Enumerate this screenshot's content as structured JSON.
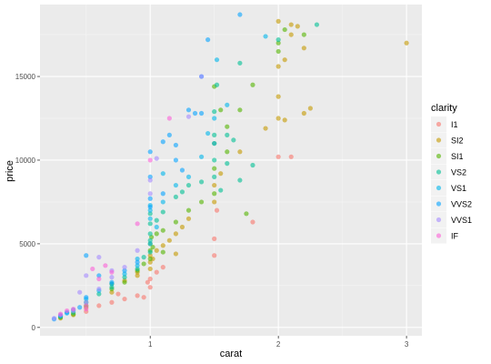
{
  "chart_data": {
    "type": "scatter",
    "title": "",
    "xlabel": "carat",
    "ylabel": "price",
    "xlim": [
      0.14,
      3.12
    ],
    "ylim": [
      -500,
      19300
    ],
    "x_ticks": [
      1,
      2,
      3
    ],
    "x_tick_labels": [
      "1",
      "2",
      "3"
    ],
    "y_ticks": [
      0,
      5000,
      10000,
      15000
    ],
    "y_tick_labels": [
      "0",
      "5000",
      "10000",
      "15000"
    ],
    "grid": true,
    "legend": {
      "title": "clarity",
      "position": "right"
    },
    "point_alpha": 0.6,
    "series": [
      {
        "name": "I1",
        "color": "#F8766D",
        "points": [
          [
            0.5,
            950
          ],
          [
            0.6,
            1300
          ],
          [
            0.7,
            1500
          ],
          [
            0.8,
            1700
          ],
          [
            0.9,
            1900
          ],
          [
            0.95,
            1800
          ],
          [
            1.0,
            2400
          ],
          [
            1.0,
            2900
          ],
          [
            1.05,
            3300
          ],
          [
            1.1,
            3600
          ],
          [
            1.5,
            4300
          ],
          [
            1.5,
            5300
          ],
          [
            1.52,
            7000
          ],
          [
            1.8,
            6300
          ],
          [
            2.0,
            10200
          ],
          [
            2.1,
            10200
          ],
          [
            0.75,
            2000
          ],
          [
            0.98,
            2700
          ]
        ]
      },
      {
        "name": "SI2",
        "color": "#C49A00",
        "points": [
          [
            0.3,
            550
          ],
          [
            0.4,
            750
          ],
          [
            0.5,
            1200
          ],
          [
            0.7,
            2100
          ],
          [
            0.8,
            2800
          ],
          [
            0.9,
            3100
          ],
          [
            1.0,
            3500
          ],
          [
            1.0,
            3900
          ],
          [
            1.0,
            4300
          ],
          [
            1.05,
            4600
          ],
          [
            1.1,
            4900
          ],
          [
            1.15,
            5200
          ],
          [
            1.2,
            5600
          ],
          [
            1.25,
            6000
          ],
          [
            1.3,
            6500
          ],
          [
            1.5,
            7500
          ],
          [
            1.5,
            8500
          ],
          [
            1.55,
            9200
          ],
          [
            1.7,
            10500
          ],
          [
            2.0,
            12500
          ],
          [
            2.0,
            13800
          ],
          [
            2.0,
            15600
          ],
          [
            2.05,
            16000
          ],
          [
            2.1,
            17500
          ],
          [
            2.1,
            18100
          ],
          [
            2.2,
            12800
          ],
          [
            2.25,
            13100
          ],
          [
            3.0,
            17000
          ],
          [
            2.05,
            12400
          ],
          [
            1.9,
            11900
          ],
          [
            2.0,
            18300
          ],
          [
            2.15,
            18000
          ],
          [
            2.2,
            16700
          ],
          [
            1.02,
            4100
          ],
          [
            0.9,
            3300
          ],
          [
            1.2,
            4400
          ]
        ]
      },
      {
        "name": "SI1",
        "color": "#53B400",
        "points": [
          [
            0.3,
            600
          ],
          [
            0.4,
            800
          ],
          [
            0.5,
            1300
          ],
          [
            0.7,
            2300
          ],
          [
            0.8,
            2700
          ],
          [
            0.9,
            3400
          ],
          [
            1.0,
            4100
          ],
          [
            1.0,
            4600
          ],
          [
            1.0,
            5000
          ],
          [
            1.01,
            5400
          ],
          [
            1.05,
            5600
          ],
          [
            1.1,
            5800
          ],
          [
            1.2,
            6300
          ],
          [
            1.3,
            7000
          ],
          [
            1.4,
            7500
          ],
          [
            1.5,
            8000
          ],
          [
            1.5,
            9500
          ],
          [
            1.5,
            11000
          ],
          [
            1.6,
            12000
          ],
          [
            1.7,
            13000
          ],
          [
            1.8,
            14500
          ],
          [
            2.0,
            16500
          ],
          [
            2.0,
            17000
          ],
          [
            2.05,
            17800
          ],
          [
            2.2,
            17500
          ],
          [
            1.5,
            14400
          ],
          [
            1.55,
            13000
          ],
          [
            1.6,
            10500
          ],
          [
            1.75,
            6800
          ],
          [
            1.02,
            4800
          ],
          [
            1.1,
            4500
          ],
          [
            0.95,
            3800
          ],
          [
            0.7,
            2600
          ]
        ]
      },
      {
        "name": "VS2",
        "color": "#00C094",
        "points": [
          [
            0.3,
            650
          ],
          [
            0.4,
            900
          ],
          [
            0.5,
            1500
          ],
          [
            0.6,
            2000
          ],
          [
            0.7,
            2400
          ],
          [
            0.8,
            3000
          ],
          [
            0.9,
            3500
          ],
          [
            1.0,
            4500
          ],
          [
            1.0,
            5200
          ],
          [
            1.0,
            6200
          ],
          [
            1.0,
            6800
          ],
          [
            1.05,
            6400
          ],
          [
            1.1,
            6900
          ],
          [
            1.2,
            7800
          ],
          [
            1.3,
            8500
          ],
          [
            1.5,
            10000
          ],
          [
            1.5,
            11500
          ],
          [
            1.5,
            12900
          ],
          [
            1.52,
            14500
          ],
          [
            1.7,
            15800
          ],
          [
            1.5,
            9000
          ],
          [
            1.55,
            8200
          ],
          [
            1.6,
            9800
          ],
          [
            1.7,
            8800
          ],
          [
            2.0,
            17200
          ],
          [
            2.3,
            18100
          ],
          [
            1.0,
            5600
          ],
          [
            0.95,
            4200
          ],
          [
            1.25,
            8100
          ],
          [
            1.4,
            8700
          ],
          [
            1.6,
            11500
          ],
          [
            1.8,
            9700
          ],
          [
            1.65,
            11200
          ]
        ]
      },
      {
        "name": "VS1",
        "color": "#00B6EB",
        "points": [
          [
            0.3,
            700
          ],
          [
            0.35,
            850
          ],
          [
            0.4,
            1050
          ],
          [
            0.5,
            1700
          ],
          [
            0.6,
            2200
          ],
          [
            0.7,
            2600
          ],
          [
            0.8,
            3200
          ],
          [
            0.9,
            3700
          ],
          [
            1.0,
            5000
          ],
          [
            1.0,
            6500
          ],
          [
            1.0,
            7000
          ],
          [
            1.0,
            7300
          ],
          [
            1.1,
            7500
          ],
          [
            1.2,
            8500
          ],
          [
            1.3,
            9000
          ],
          [
            1.5,
            11000
          ],
          [
            1.5,
            12500
          ],
          [
            1.6,
            13300
          ],
          [
            1.52,
            16000
          ],
          [
            1.9,
            17400
          ],
          [
            0.9,
            4100
          ],
          [
            1.05,
            6000
          ],
          [
            1.1,
            9200
          ],
          [
            1.4,
            10200
          ],
          [
            1.45,
            11600
          ]
        ]
      },
      {
        "name": "VVS2",
        "color": "#06A4FF",
        "points": [
          [
            0.25,
            500
          ],
          [
            0.3,
            700
          ],
          [
            0.35,
            900
          ],
          [
            0.45,
            1200
          ],
          [
            0.5,
            1800
          ],
          [
            0.5,
            4300
          ],
          [
            0.7,
            2700
          ],
          [
            0.8,
            3400
          ],
          [
            0.9,
            3900
          ],
          [
            1.0,
            7200
          ],
          [
            1.0,
            7700
          ],
          [
            1.0,
            10500
          ],
          [
            1.1,
            8000
          ],
          [
            1.2,
            10000
          ],
          [
            1.2,
            10900
          ],
          [
            1.25,
            9400
          ],
          [
            1.3,
            13000
          ],
          [
            1.4,
            15000
          ],
          [
            1.45,
            17200
          ],
          [
            1.7,
            18700
          ],
          [
            1.35,
            12800
          ],
          [
            1.4,
            12800
          ],
          [
            1.1,
            11100
          ],
          [
            1.0,
            9000
          ],
          [
            0.6,
            3100
          ],
          [
            1.15,
            11500
          ]
        ]
      },
      {
        "name": "VVS1",
        "color": "#A58AFF",
        "points": [
          [
            0.25,
            550
          ],
          [
            0.3,
            750
          ],
          [
            0.4,
            1000
          ],
          [
            0.5,
            1500
          ],
          [
            0.5,
            3100
          ],
          [
            0.6,
            2300
          ],
          [
            0.7,
            3000
          ],
          [
            0.7,
            3400
          ],
          [
            0.8,
            3600
          ],
          [
            0.9,
            4600
          ],
          [
            1.0,
            8800
          ],
          [
            1.05,
            10100
          ],
          [
            1.0,
            8000
          ],
          [
            1.4,
            15000
          ],
          [
            1.3,
            12600
          ],
          [
            0.45,
            2100
          ],
          [
            0.6,
            4200
          ]
        ]
      },
      {
        "name": "IF",
        "color": "#FB61D7",
        "points": [
          [
            0.3,
            800
          ],
          [
            0.35,
            1000
          ],
          [
            0.4,
            1100
          ],
          [
            0.5,
            1300
          ],
          [
            0.6,
            2900
          ],
          [
            0.7,
            3300
          ],
          [
            0.9,
            6200
          ],
          [
            1.0,
            10000
          ],
          [
            1.15,
            12500
          ],
          [
            0.5,
            1100
          ],
          [
            0.65,
            3700
          ],
          [
            0.55,
            3500
          ]
        ]
      }
    ]
  }
}
